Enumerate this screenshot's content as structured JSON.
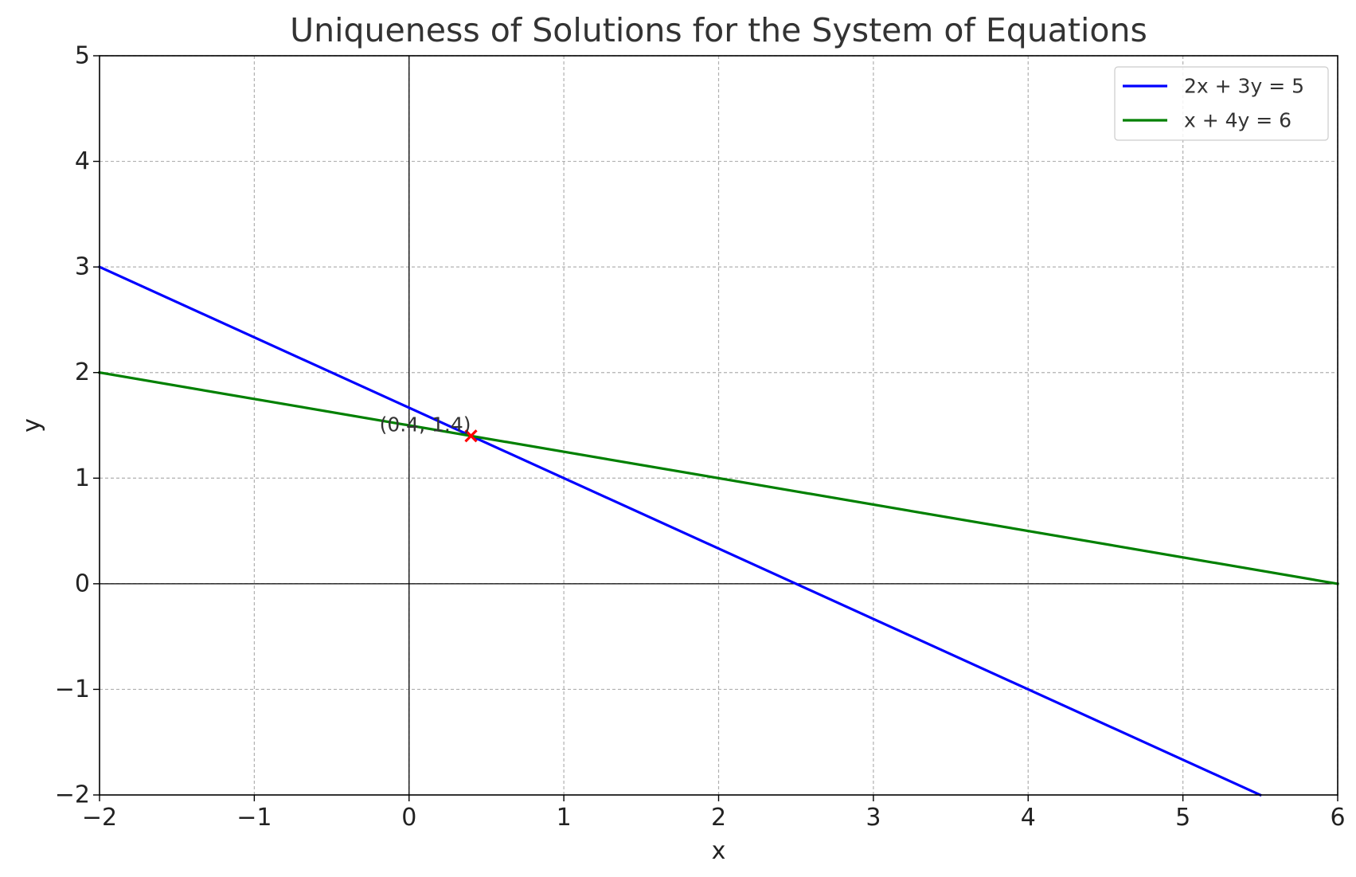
{
  "chart_data": {
    "type": "line",
    "title": "Uniqueness of Solutions for the System of Equations",
    "xlabel": "x",
    "ylabel": "y",
    "xlim": [
      -2,
      6
    ],
    "ylim": [
      -2,
      5
    ],
    "xticks": [
      -2,
      -1,
      0,
      1,
      2,
      3,
      4,
      5,
      6
    ],
    "yticks": [
      -2,
      -1,
      0,
      1,
      2,
      3,
      4,
      5
    ],
    "xtick_labels": [
      "−2",
      "−1",
      "0",
      "1",
      "2",
      "3",
      "4",
      "5",
      "6"
    ],
    "ytick_labels": [
      "−2",
      "−1",
      "0",
      "1",
      "2",
      "3",
      "4",
      "5"
    ],
    "grid": true,
    "legend_position": "top-right",
    "series": [
      {
        "name": "2x + 3y = 5",
        "color": "#0000ff",
        "x": [
          -2,
          5.5
        ],
        "y": [
          3,
          -2
        ]
      },
      {
        "name": "x + 4y = 6",
        "color": "#008000",
        "x": [
          -2,
          6
        ],
        "y": [
          2,
          0
        ]
      }
    ],
    "marker": {
      "x": 0.4,
      "y": 1.4,
      "symbol": "x",
      "color": "#ff0000"
    },
    "annotation": {
      "text": "(0.4, 1.4)",
      "x": 0.4,
      "y": 1.4
    }
  }
}
